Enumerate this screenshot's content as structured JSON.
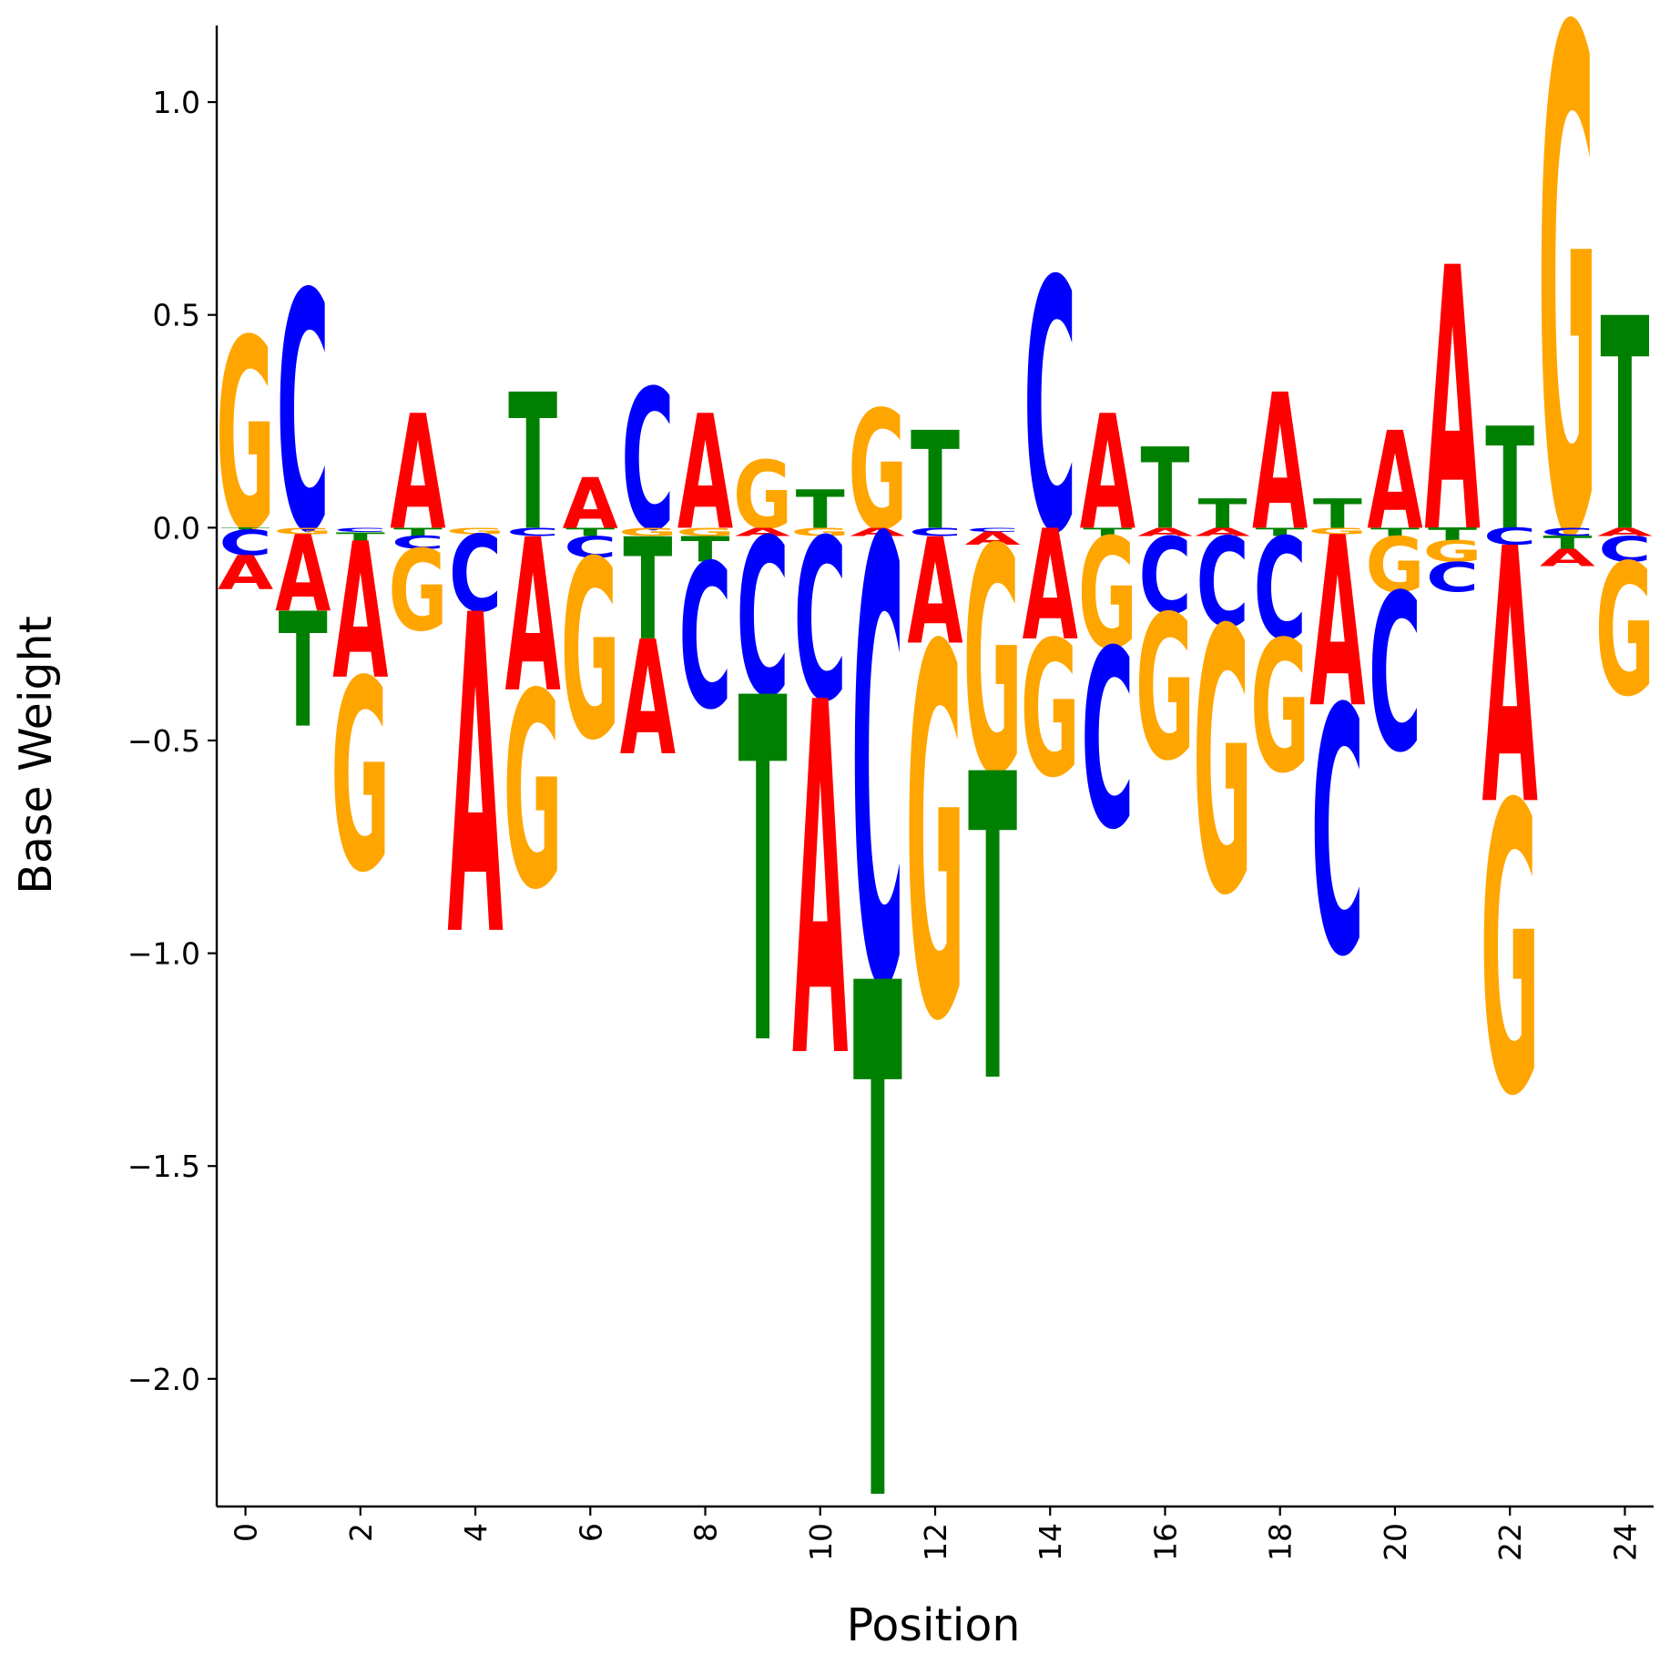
{
  "chart_data": {
    "type": "sequence-logo",
    "xlabel": "Position",
    "ylabel": "Base Weight",
    "ylim": [
      -2.3,
      1.18
    ],
    "xlim": [
      -0.5,
      24.5
    ],
    "xticks": [
      0,
      2,
      4,
      6,
      8,
      10,
      12,
      14,
      16,
      18,
      20,
      22,
      24
    ],
    "yticks": [
      -2.0,
      -1.5,
      -1.0,
      -0.5,
      0.0,
      0.5,
      1.0
    ],
    "ytick_labels": [
      "−2.0",
      "−1.5",
      "−1.0",
      "−0.5",
      "0.0",
      "0.5",
      "1.0"
    ],
    "colors": {
      "A": "#ff0000",
      "C": "#0000ff",
      "G": "#ffa500",
      "T": "#008000"
    },
    "positions": [
      {
        "pos": 0,
        "A": -0.08,
        "C": -0.06,
        "G": 0.45,
        "T": -0.005
      },
      {
        "pos": 1,
        "A": -0.18,
        "C": 0.56,
        "G": -0.015,
        "T": -0.27
      },
      {
        "pos": 2,
        "A": -0.32,
        "C": -0.01,
        "G": -0.45,
        "T": -0.02
      },
      {
        "pos": 3,
        "A": 0.27,
        "C": -0.03,
        "G": -0.19,
        "T": -0.02
      },
      {
        "pos": 4,
        "A": -0.75,
        "C": -0.18,
        "G": -0.015,
        "T": 0.0
      },
      {
        "pos": 5,
        "A": -0.36,
        "C": -0.02,
        "G": -0.46,
        "T": 0.32
      },
      {
        "pos": 6,
        "A": 0.12,
        "C": -0.05,
        "G": -0.42,
        "T": -0.02
      },
      {
        "pos": 7,
        "A": -0.27,
        "C": 0.33,
        "G": -0.02,
        "T": -0.24
      },
      {
        "pos": 8,
        "A": 0.27,
        "C": -0.34,
        "G": -0.02,
        "T": -0.06
      },
      {
        "pos": 9,
        "A": -0.02,
        "C": -0.37,
        "G": 0.16,
        "T": -0.81
      },
      {
        "pos": 10,
        "A": -0.83,
        "C": -0.38,
        "G": -0.02,
        "T": 0.09
      },
      {
        "pos": 11,
        "A": -0.02,
        "C": -1.04,
        "G": 0.28,
        "T": -1.21
      },
      {
        "pos": 12,
        "A": -0.25,
        "C": -0.02,
        "G": -0.87,
        "T": 0.23
      },
      {
        "pos": 13,
        "A": -0.03,
        "C": -0.01,
        "G": -0.53,
        "T": -0.72
      },
      {
        "pos": 14,
        "A": -0.26,
        "C": 0.59,
        "G": -0.32,
        "T": 0.0
      },
      {
        "pos": 15,
        "A": 0.27,
        "C": -0.42,
        "G": -0.26,
        "T": -0.02
      },
      {
        "pos": 16,
        "A": -0.02,
        "C": -0.18,
        "G": -0.34,
        "T": 0.19
      },
      {
        "pos": 17,
        "A": -0.02,
        "C": -0.21,
        "G": -0.62,
        "T": 0.07
      },
      {
        "pos": 18,
        "A": 0.32,
        "C": -0.24,
        "G": -0.31,
        "T": -0.02
      },
      {
        "pos": 19,
        "A": -0.4,
        "C": -0.58,
        "G": -0.015,
        "T": 0.07
      },
      {
        "pos": 20,
        "A": 0.23,
        "C": -0.37,
        "G": -0.13,
        "T": -0.02
      },
      {
        "pos": 21,
        "A": 0.62,
        "C": -0.07,
        "G": -0.05,
        "T": -0.03
      },
      {
        "pos": 22,
        "A": -0.6,
        "C": -0.04,
        "G": -0.68,
        "T": 0.24
      },
      {
        "pos": 23,
        "A": -0.04,
        "C": -0.02,
        "G": 1.18,
        "T": -0.03
      },
      {
        "pos": 24,
        "A": -0.02,
        "C": -0.06,
        "G": -0.31,
        "T": 0.5
      }
    ]
  }
}
